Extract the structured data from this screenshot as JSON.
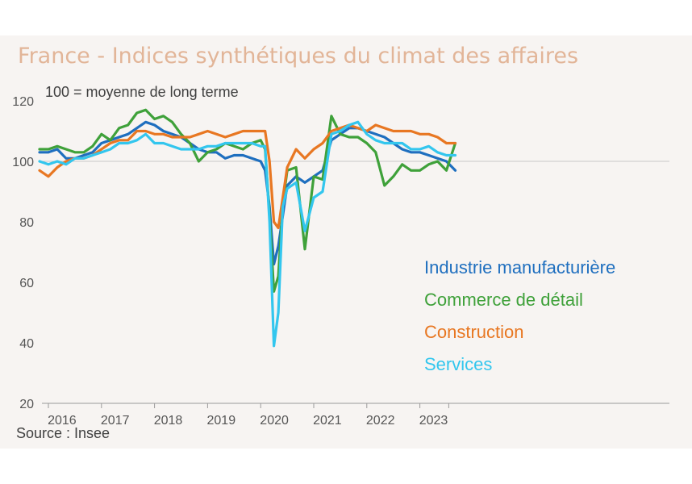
{
  "title": "France - Indices synthétiques du climat des affaires",
  "note": "100 = moyenne de long terme",
  "source": "Source : Insee",
  "colors": {
    "industrie": "#1f6fbf",
    "commerce": "#3fa13a",
    "construction": "#e87722",
    "services": "#33c6ee",
    "title": "#e2b598",
    "background": "#f7f4f2"
  },
  "chart_data": {
    "type": "line",
    "title": "France - Indices synthétiques du climat des affaires",
    "subtitle": "100 = moyenne de long terme",
    "xlabel": "",
    "ylabel": "",
    "ylim": [
      20,
      120
    ],
    "yticks": [
      "20",
      "40",
      "60",
      "80",
      "100",
      "120"
    ],
    "xticks": [
      "2016",
      "2017",
      "2018",
      "2019",
      "2020",
      "2021",
      "2022",
      "2023"
    ],
    "x": [
      "2015-11",
      "2016-01",
      "2016-03",
      "2016-05",
      "2016-07",
      "2016-09",
      "2016-11",
      "2017-01",
      "2017-03",
      "2017-05",
      "2017-07",
      "2017-09",
      "2017-11",
      "2018-01",
      "2018-03",
      "2018-05",
      "2018-07",
      "2018-09",
      "2018-11",
      "2019-01",
      "2019-03",
      "2019-05",
      "2019-07",
      "2019-09",
      "2019-11",
      "2020-01",
      "2020-02",
      "2020-03",
      "2020-04",
      "2020-05",
      "2020-06",
      "2020-07",
      "2020-09",
      "2020-11",
      "2021-01",
      "2021-03",
      "2021-05",
      "2021-07",
      "2021-09",
      "2021-11",
      "2022-01",
      "2022-03",
      "2022-05",
      "2022-07",
      "2022-09",
      "2022-11",
      "2023-01",
      "2023-03",
      "2023-05",
      "2023-07",
      "2023-09"
    ],
    "series": [
      {
        "name": "Industrie manufacturière",
        "color": "#1f6fbf",
        "values": [
          103,
          103,
          104,
          101,
          101,
          102,
          103,
          106,
          107,
          108,
          109,
          111,
          113,
          112,
          110,
          109,
          108,
          106,
          104,
          103,
          103,
          101,
          102,
          102,
          101,
          100,
          97,
          85,
          66,
          72,
          82,
          92,
          95,
          93,
          95,
          97,
          107,
          109,
          111,
          111,
          110,
          109,
          108,
          106,
          104,
          103,
          103,
          102,
          101,
          100,
          97
        ]
      },
      {
        "name": "Commerce de détail",
        "color": "#3fa13a",
        "values": [
          104,
          104,
          105,
          104,
          103,
          103,
          105,
          109,
          107,
          111,
          112,
          116,
          117,
          114,
          115,
          113,
          109,
          106,
          100,
          103,
          104,
          106,
          105,
          104,
          106,
          107,
          104,
          82,
          57,
          62,
          86,
          97,
          98,
          71,
          95,
          94,
          115,
          109,
          108,
          108,
          106,
          103,
          92,
          95,
          99,
          97,
          97,
          99,
          100,
          97,
          106
        ]
      },
      {
        "name": "Construction",
        "color": "#e87722",
        "values": [
          97,
          95,
          98,
          100,
          101,
          101,
          102,
          104,
          106,
          107,
          107,
          110,
          110,
          109,
          109,
          108,
          108,
          108,
          109,
          110,
          109,
          108,
          109,
          110,
          110,
          110,
          110,
          100,
          80,
          78,
          88,
          98,
          104,
          101,
          104,
          106,
          110,
          111,
          112,
          111,
          110,
          112,
          111,
          110,
          110,
          110,
          109,
          109,
          108,
          106,
          106
        ]
      },
      {
        "name": "Services",
        "color": "#33c6ee",
        "values": [
          100,
          99,
          100,
          99,
          101,
          101,
          102,
          103,
          104,
          106,
          106,
          107,
          109,
          106,
          106,
          105,
          104,
          104,
          104,
          105,
          105,
          106,
          106,
          106,
          106,
          105,
          105,
          80,
          39,
          50,
          85,
          91,
          93,
          77,
          88,
          90,
          109,
          110,
          112,
          113,
          109,
          107,
          106,
          106,
          106,
          104,
          104,
          105,
          103,
          102,
          102
        ]
      }
    ]
  }
}
